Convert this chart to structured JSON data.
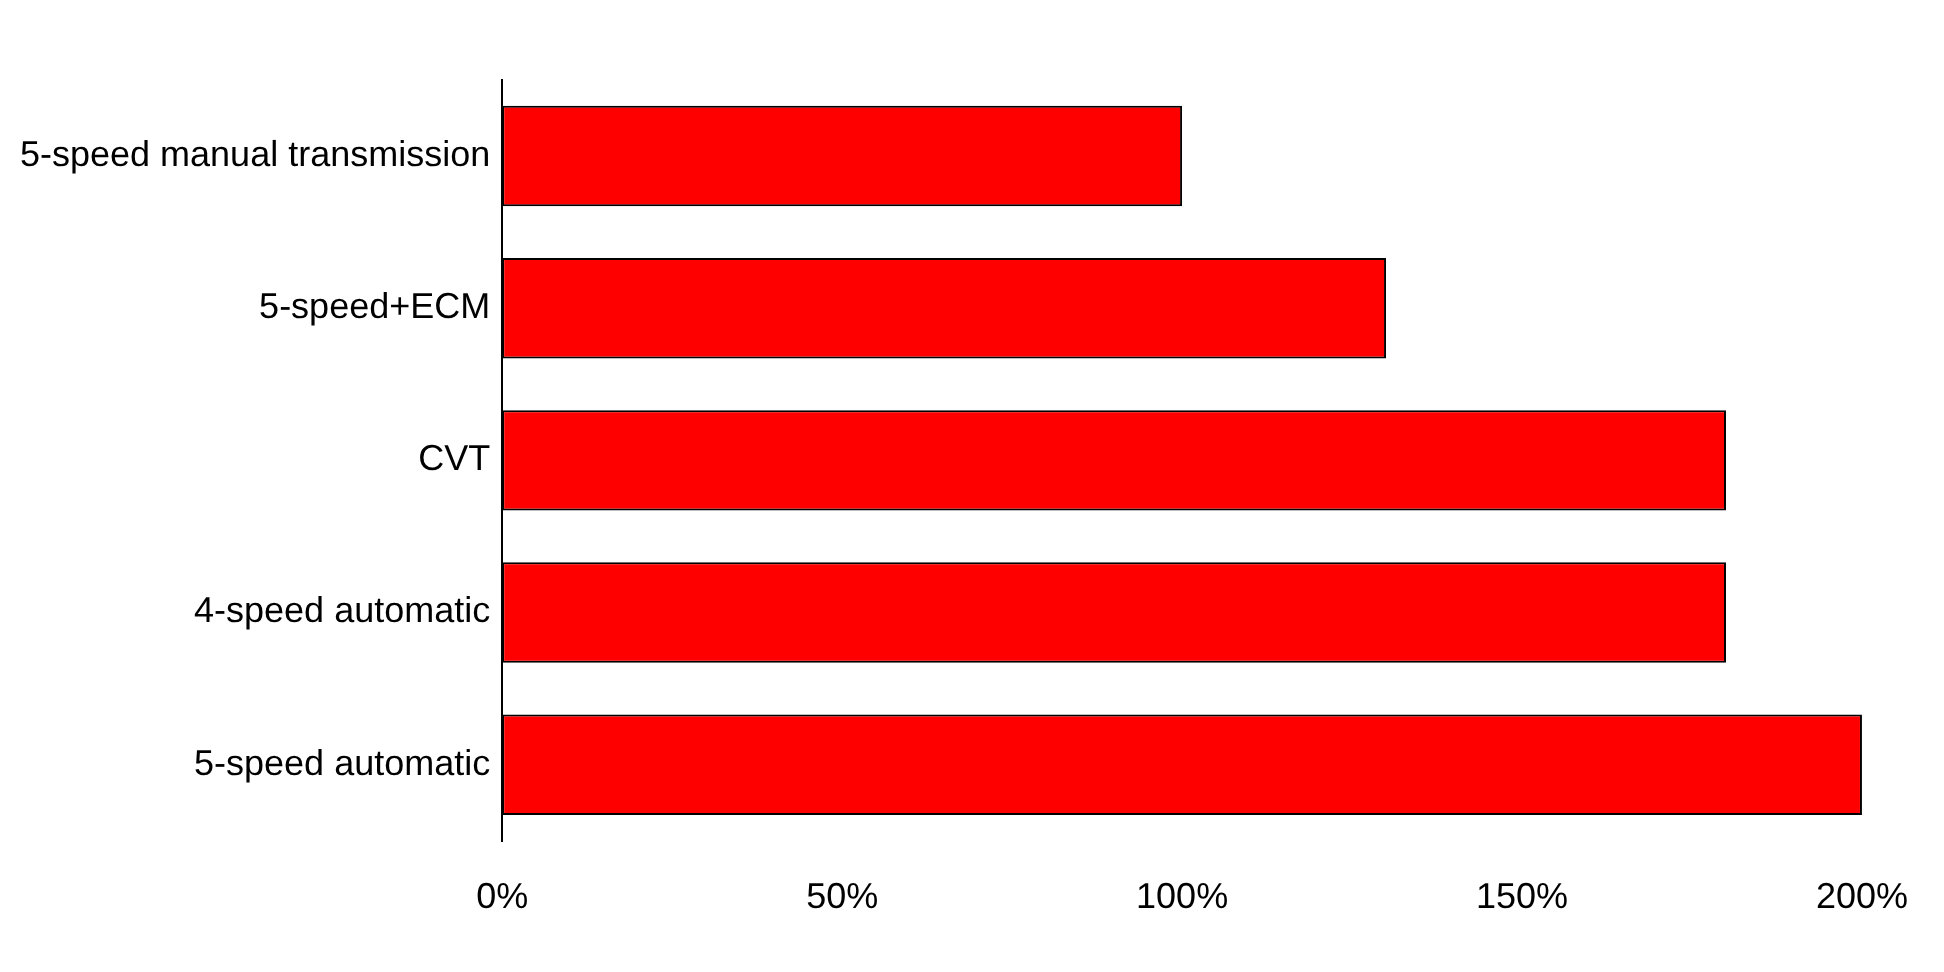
{
  "chart_data": {
    "type": "bar",
    "orientation": "horizontal",
    "categories": [
      "5-speed manual transmission",
      "5-speed+ECM",
      "CVT",
      "4-speed automatic",
      "5-speed automatic"
    ],
    "values": [
      100,
      130,
      180,
      180,
      200
    ],
    "color": "#ff0000",
    "xlim": [
      0,
      200
    ],
    "xticks": [
      {
        "value": 0,
        "label": "0%"
      },
      {
        "value": 50,
        "label": "50%"
      },
      {
        "value": 100,
        "label": "100%"
      },
      {
        "value": 150,
        "label": "150%"
      },
      {
        "value": 200,
        "label": "200%"
      }
    ],
    "grid": false,
    "legend": false
  }
}
